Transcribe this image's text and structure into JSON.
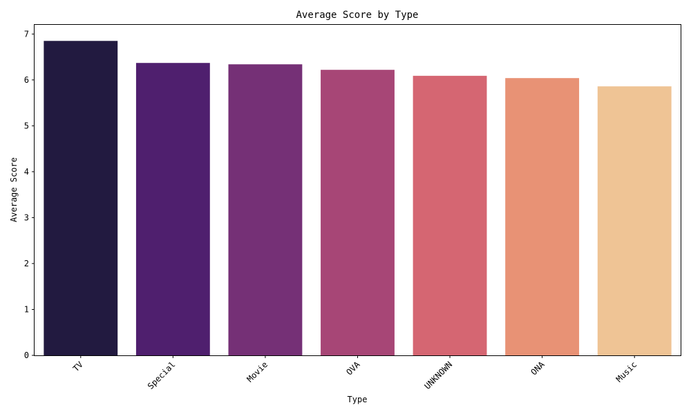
{
  "chart_data": {
    "type": "bar",
    "title": "Average Score by Type",
    "xlabel": "Type",
    "ylabel": "Average Score",
    "categories": [
      "TV",
      "Special",
      "Movie",
      "OVA",
      "UNKNOWN",
      "ONA",
      "Music"
    ],
    "values": [
      6.85,
      6.37,
      6.34,
      6.22,
      6.09,
      6.04,
      5.86
    ],
    "colors": [
      "#221a40",
      "#4f1f6e",
      "#753076",
      "#a74676",
      "#d56672",
      "#e89275",
      "#efc495"
    ],
    "ylim": [
      0,
      7.2
    ],
    "yticks": [
      0,
      1,
      2,
      3,
      4,
      5,
      6,
      7
    ],
    "grid": false,
    "legend": "none"
  }
}
